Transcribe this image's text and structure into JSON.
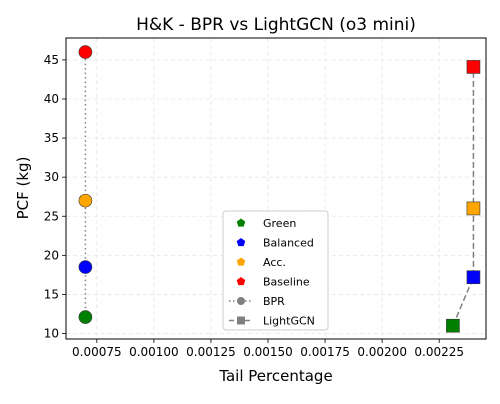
{
  "chart_data": {
    "type": "scatter",
    "title": "H&K - BPR vs LightGCN (o3 mini)",
    "xlabel": "Tail Percentage",
    "ylabel": "PCF (kg)",
    "xlim": [
      0.000615,
      0.002455
    ],
    "ylim": [
      9.3,
      47.8
    ],
    "x_ticks": [
      0.00075,
      0.001,
      0.00125,
      0.0015,
      0.00175,
      0.002,
      0.00225
    ],
    "x_tick_labels": [
      "0.00075",
      "0.00100",
      "0.00125",
      "0.00150",
      "0.00175",
      "0.00200",
      "0.00225"
    ],
    "y_ticks": [
      10,
      15,
      20,
      25,
      30,
      35,
      40,
      45
    ],
    "y_tick_labels": [
      "10",
      "15",
      "20",
      "25",
      "30",
      "35",
      "40",
      "45"
    ],
    "grid": true,
    "legend_position": "lower-center",
    "categories": [
      {
        "name": "Green",
        "color": "#008000"
      },
      {
        "name": "Balanced",
        "color": "#0000ff"
      },
      {
        "name": "Acc.",
        "color": "#ffa500"
      },
      {
        "name": "Baseline",
        "color": "#ff0000"
      }
    ],
    "series": [
      {
        "name": "BPR",
        "marker": "circle",
        "line_style": "dotted",
        "points": [
          {
            "category": "Green",
            "x": 0.0007,
            "y": 12.1
          },
          {
            "category": "Balanced",
            "x": 0.0007,
            "y": 18.5
          },
          {
            "category": "Acc.",
            "x": 0.0007,
            "y": 27.0
          },
          {
            "category": "Baseline",
            "x": 0.0007,
            "y": 46.0
          }
        ]
      },
      {
        "name": "LightGCN",
        "marker": "square",
        "line_style": "dashed",
        "points": [
          {
            "category": "Green",
            "x": 0.00231,
            "y": 11.0
          },
          {
            "category": "Balanced",
            "x": 0.0024,
            "y": 17.2
          },
          {
            "category": "Acc.",
            "x": 0.0024,
            "y": 26.0
          },
          {
            "category": "Baseline",
            "x": 0.0024,
            "y": 44.1
          }
        ]
      }
    ],
    "line_color": "#808080"
  }
}
